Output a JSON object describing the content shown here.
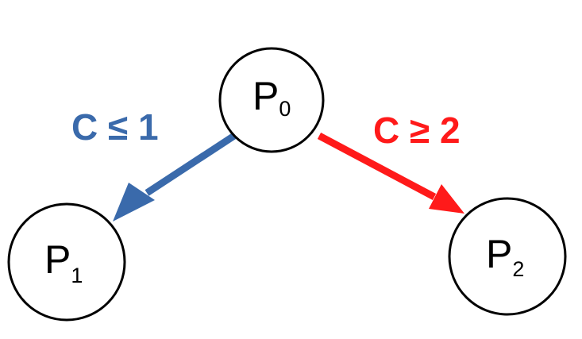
{
  "nodes": {
    "p0": {
      "main": "P",
      "sub": "0"
    },
    "p1": {
      "main": "P",
      "sub": "1"
    },
    "p2": {
      "main": "P",
      "sub": "2"
    }
  },
  "edges": {
    "left": {
      "label": "C ≤ 1",
      "color": "#3a6aab"
    },
    "right": {
      "label": "C ≥ 2",
      "color": "#ff1a1a"
    }
  }
}
